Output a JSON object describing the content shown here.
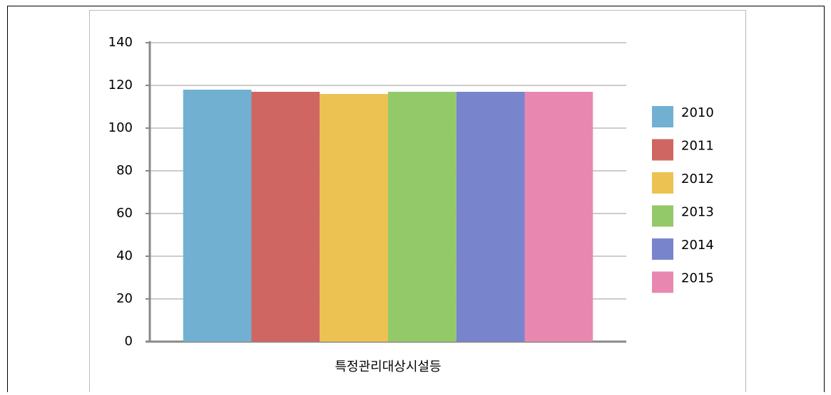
{
  "chart_data": {
    "type": "bar",
    "categories": [
      "특정관리대상시설등"
    ],
    "series": [
      {
        "name": "2010",
        "color": "#72b0d2",
        "values": [
          118
        ]
      },
      {
        "name": "2011",
        "color": "#cf6662",
        "values": [
          117
        ]
      },
      {
        "name": "2012",
        "color": "#ecc352",
        "values": [
          116
        ]
      },
      {
        "name": "2013",
        "color": "#94c96a",
        "values": [
          117
        ]
      },
      {
        "name": "2014",
        "color": "#7884cc",
        "values": [
          117
        ]
      },
      {
        "name": "2015",
        "color": "#e888b0",
        "values": [
          117
        ]
      }
    ],
    "ylim": [
      0,
      140
    ],
    "yticks": [
      0,
      20,
      40,
      60,
      80,
      100,
      120,
      140
    ],
    "grid": true,
    "legend": "right"
  }
}
